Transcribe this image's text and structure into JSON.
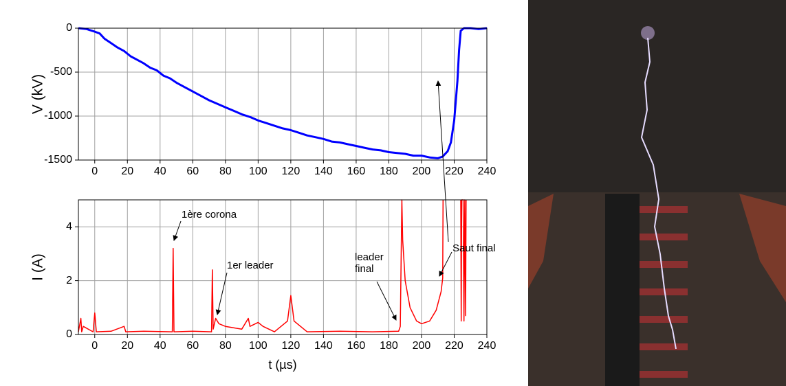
{
  "chart_data": [
    {
      "type": "line",
      "ylabel": "V (kV)",
      "color": "#0000ff",
      "x": [
        -10,
        -5,
        0,
        3,
        6,
        10,
        14,
        18,
        22,
        26,
        30,
        34,
        38,
        42,
        46,
        50,
        55,
        60,
        65,
        70,
        75,
        80,
        85,
        90,
        95,
        100,
        105,
        110,
        115,
        120,
        125,
        130,
        135,
        140,
        145,
        150,
        155,
        160,
        165,
        170,
        175,
        180,
        185,
        190,
        195,
        200,
        205,
        210,
        213,
        216,
        218,
        220,
        222,
        223,
        224,
        226,
        230,
        235,
        240
      ],
      "values": [
        0,
        -10,
        -40,
        -60,
        -120,
        -170,
        -220,
        -260,
        -320,
        -360,
        -400,
        -450,
        -480,
        -540,
        -570,
        -620,
        -670,
        -720,
        -770,
        -820,
        -860,
        -900,
        -940,
        -980,
        -1010,
        -1050,
        -1080,
        -1110,
        -1140,
        -1160,
        -1190,
        -1220,
        -1240,
        -1260,
        -1290,
        -1300,
        -1320,
        -1340,
        -1360,
        -1380,
        -1390,
        -1410,
        -1420,
        -1430,
        -1450,
        -1450,
        -1470,
        -1480,
        -1460,
        -1400,
        -1300,
        -1050,
        -600,
        -250,
        -30,
        0,
        0,
        -10,
        0
      ],
      "xlim": [
        -10,
        240
      ],
      "ylim": [
        -1500,
        0
      ],
      "xticks": [
        0,
        20,
        40,
        60,
        80,
        100,
        120,
        140,
        160,
        180,
        200,
        220,
        240
      ],
      "yticks": [
        0,
        -500,
        -1000,
        -1500
      ],
      "grid": true
    },
    {
      "type": "line",
      "ylabel": "I (A)",
      "xlabel": "t (µs)",
      "color": "#ff0000",
      "x": [
        -10,
        -8.5,
        -8,
        -7,
        -1,
        0,
        1,
        10,
        18,
        19,
        30,
        47.5,
        48,
        48.5,
        60,
        71.5,
        72,
        72.5,
        74,
        76,
        80,
        90,
        94,
        95,
        100,
        103,
        110,
        118,
        120,
        122,
        130,
        150,
        170,
        186,
        187,
        188,
        188.5,
        190,
        193,
        197,
        200,
        205,
        209,
        212,
        213,
        213.2,
        214,
        224,
        224.3,
        224.6,
        225.5,
        226,
        226.5,
        227,
        227.3
      ],
      "values": [
        0.1,
        0.6,
        0.1,
        0.3,
        0.1,
        0.8,
        0.1,
        0.12,
        0.3,
        0.1,
        0.12,
        0.1,
        3.2,
        0.1,
        0.12,
        0.1,
        2.4,
        0.2,
        0.6,
        0.4,
        0.3,
        0.2,
        0.6,
        0.3,
        0.45,
        0.3,
        0.1,
        0.5,
        1.45,
        0.5,
        0.1,
        0.12,
        0.1,
        0.12,
        0.3,
        5,
        3.5,
        2,
        1,
        0.5,
        0.4,
        0.5,
        0.9,
        1.6,
        2.1,
        5,
        null,
        5,
        0.5,
        5,
        5,
        0.5,
        5,
        0.7,
        5
      ],
      "xlim": [
        -10,
        240
      ],
      "ylim": [
        0,
        5
      ],
      "xticks": [
        0,
        20,
        40,
        60,
        80,
        100,
        120,
        140,
        160,
        180,
        200,
        220,
        240
      ],
      "yticks": [
        0,
        2,
        4
      ],
      "grid": true,
      "annotations": [
        "1ère corona",
        "1er leader",
        "leader final",
        "Saut final"
      ]
    }
  ]
}
